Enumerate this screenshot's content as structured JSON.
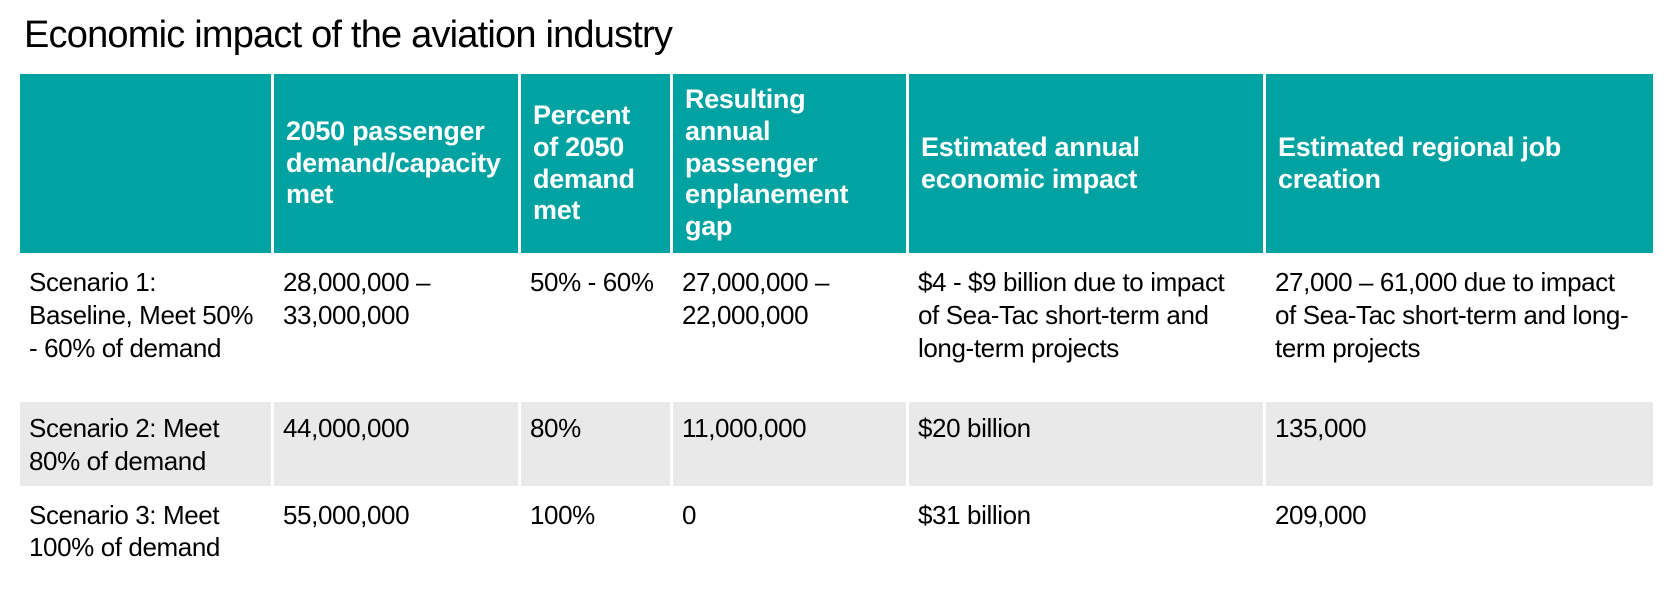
{
  "page": {
    "background": "#ffffff"
  },
  "chart_data": {
    "type": "table",
    "title": "Economic impact of the aviation industry",
    "columns": [
      "",
      "2050 passenger demand/capacity met",
      "Percent of 2050 demand met",
      "Resulting annual passenger enplanement gap",
      "Estimated annual economic impact",
      "Estimated regional job creation"
    ],
    "rows": [
      [
        "Scenario 1: Baseline, Meet 50% - 60% of demand",
        "28,000,000 – 33,000,000",
        "50% - 60%",
        "27,000,000 – 22,000,000",
        "$4 - $9 billion due to impact of Sea-Tac short-term and long-term projects",
        "27,000 – 61,000 due to impact of Sea-Tac short-term and long-term projects"
      ],
      [
        "Scenario 2: Meet 80% of demand",
        "44,000,000",
        "80%",
        "11,000,000",
        "$20 billion",
        "135,000"
      ],
      [
        "Scenario 3: Meet 100% of demand",
        "55,000,000",
        "100%",
        "0",
        "$31 billion",
        "209,000"
      ]
    ],
    "layout_hints": {
      "header_valign": "middle",
      "body_valign": "top",
      "alternating_row_shading": "row 2 shaded gray",
      "grid": "white gaps between cells"
    }
  },
  "colors": {
    "header_bg": "#00a3a1",
    "header_text": "#ffffff",
    "row_alt_bg": "#e9e9e9",
    "body_text": "#000000",
    "page_bg": "#ffffff"
  }
}
